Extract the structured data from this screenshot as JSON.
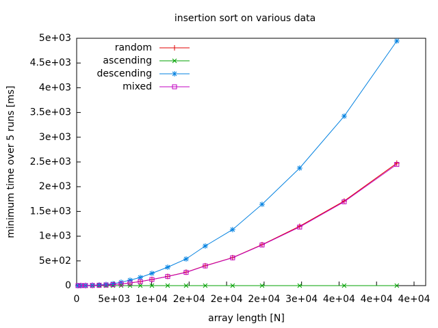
{
  "chart_data": {
    "type": "line",
    "title": "insertion sort on various data",
    "xlabel": "array length [N]",
    "ylabel": "minimum time over 5 runs [ms]",
    "x": [
      180,
      550,
      1190,
      2100,
      3000,
      3920,
      4840,
      5930,
      7120,
      8490,
      10040,
      12140,
      14600,
      17150,
      20800,
      24730,
      29745,
      35680,
      42700
    ],
    "series": [
      {
        "name": "random",
        "color": "#e00000",
        "marker": "plus",
        "values": [
          0,
          1,
          2,
          4,
          8,
          12,
          20,
          35,
          55,
          83,
          125,
          187,
          272,
          402,
          567,
          828,
          1200,
          1710,
          2475
        ]
      },
      {
        "name": "ascending",
        "color": "#00a000",
        "marker": "cross",
        "values": [
          0,
          0,
          0,
          0,
          0,
          0,
          0,
          0,
          0,
          0,
          0,
          0,
          0,
          0,
          0,
          0,
          0,
          0,
          0
        ]
      },
      {
        "name": "descending",
        "color": "#0080e0",
        "marker": "star",
        "values": [
          0,
          1,
          4,
          8,
          15,
          25,
          40,
          70,
          110,
          166,
          249,
          373,
          539,
          801,
          1133,
          1644,
          2376,
          3425,
          4945
        ]
      },
      {
        "name": "mixed",
        "color": "#c000c0",
        "marker": "square",
        "values": [
          0,
          1,
          2,
          4,
          7,
          12,
          20,
          34,
          54,
          82,
          124,
          184,
          268,
          398,
          563,
          822,
          1185,
          1695,
          2450
        ]
      }
    ],
    "xlim": [
      0,
      45000
    ],
    "xticks": [
      0,
      {
        "value": 5000,
        "label": "5e+03"
      },
      {
        "value": 10000,
        "label": "1e+04"
      },
      {
        "value": 15000,
        "label": "2e+04"
      },
      {
        "value": 20000,
        "label": "2e+04"
      },
      {
        "value": 25000,
        "label": "2e+04"
      },
      {
        "value": 30000,
        "label": "3e+04"
      },
      {
        "value": 35000,
        "label": "4e+04"
      },
      {
        "value": 40000,
        "label": "4e+04"
      },
      {
        "value": 45000,
        "label": "4e+04"
      }
    ],
    "ylim": [
      0,
      5000
    ],
    "yticks": [
      0,
      {
        "value": 500,
        "label": "5e+02"
      },
      {
        "value": 1000,
        "label": "1e+03"
      },
      {
        "value": 1500,
        "label": "1.5e+03"
      },
      {
        "value": 2000,
        "label": "2e+03"
      },
      {
        "value": 2500,
        "label": "2.5e+03"
      },
      {
        "value": 3000,
        "label": "3e+03"
      },
      {
        "value": 3500,
        "label": "3.5e+03"
      },
      {
        "value": 4000,
        "label": "4e+03"
      },
      {
        "value": 4500,
        "label": "4.5e+03"
      },
      {
        "value": 5000,
        "label": "5e+03"
      }
    ]
  }
}
